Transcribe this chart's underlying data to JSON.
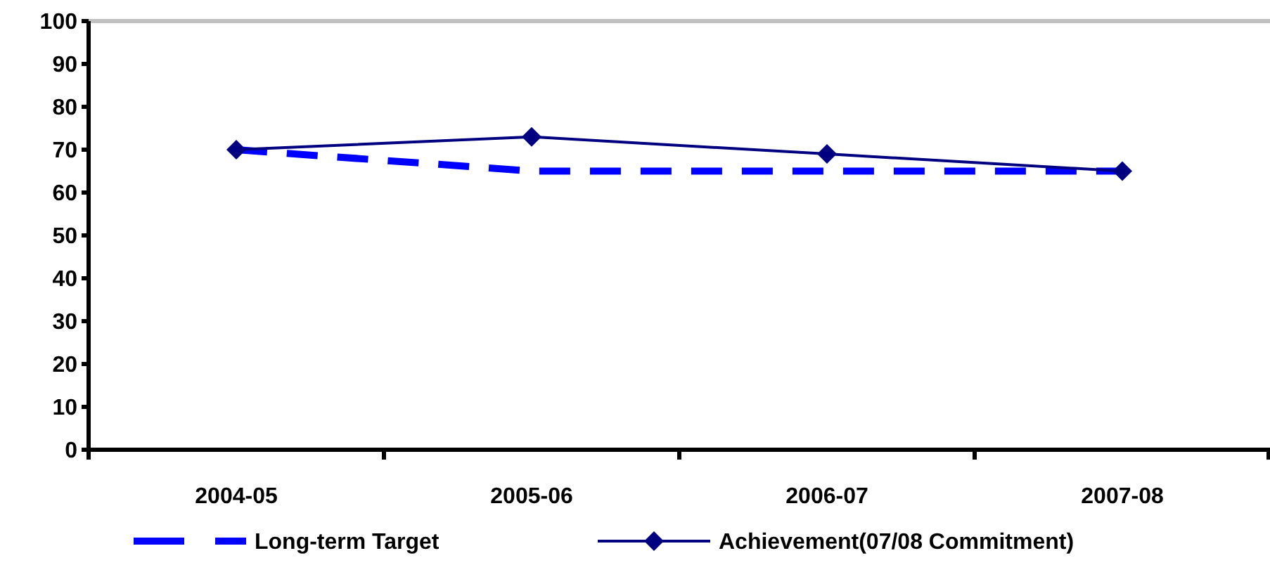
{
  "chart_data": {
    "type": "line",
    "categories": [
      "2004-05",
      "2005-06",
      "2006-07",
      "2007-08"
    ],
    "series": [
      {
        "name": "Long-term Target",
        "color": "#0000ff",
        "values": [
          70,
          65,
          65,
          65
        ],
        "line_style": "dashed",
        "marker": "none"
      },
      {
        "name": "Achievement(07/08 Commitment)",
        "color": "#000080",
        "values": [
          70,
          73,
          69,
          65
        ],
        "line_style": "solid",
        "marker": "diamond"
      }
    ],
    "ylim": [
      0,
      100
    ],
    "yticks": [
      0,
      10,
      20,
      30,
      40,
      50,
      60,
      70,
      80,
      90,
      100
    ],
    "grid": false,
    "legend": "bottom"
  }
}
